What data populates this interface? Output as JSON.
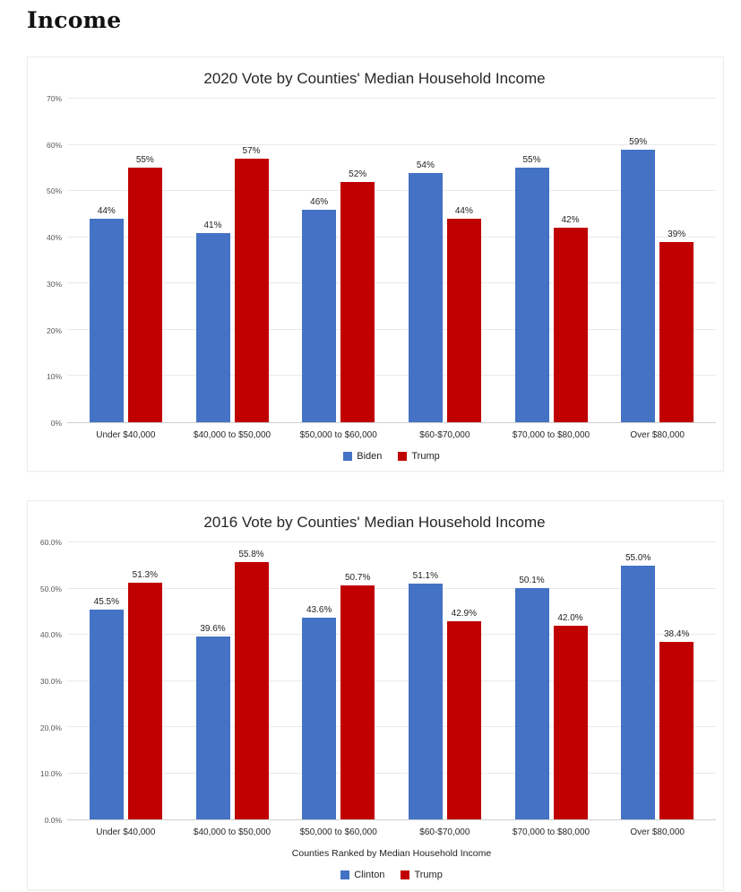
{
  "page": {
    "heading": "Income"
  },
  "colors": {
    "democrat_blue": "#4472C4",
    "republican_red": "#C00000"
  },
  "chart_data": [
    {
      "type": "bar",
      "title": "2020 Vote by Counties' Median Household Income",
      "categories": [
        "Under $40,000",
        "$40,000 to $50,000",
        "$50,000 to $60,000",
        "$60-$70,000",
        "$70,000 to $80,000",
        "Over $80,000"
      ],
      "series": [
        {
          "name": "Biden",
          "color": "#4472C4",
          "values": [
            44,
            41,
            46,
            54,
            55,
            59
          ],
          "labels": [
            "44%",
            "41%",
            "46%",
            "54%",
            "55%",
            "59%"
          ]
        },
        {
          "name": "Trump",
          "color": "#C00000",
          "values": [
            55,
            57,
            52,
            44,
            42,
            39
          ],
          "labels": [
            "55%",
            "57%",
            "52%",
            "44%",
            "42%",
            "39%"
          ]
        }
      ],
      "ylim": [
        0,
        70
      ],
      "yticks": [
        "0%",
        "10%",
        "20%",
        "30%",
        "40%",
        "50%",
        "60%",
        "70%"
      ],
      "xlabel": "",
      "legend": [
        "Biden",
        "Trump"
      ],
      "legend_position": "bottom",
      "grid": true
    },
    {
      "type": "bar",
      "title": "2016 Vote by Counties' Median Household Income",
      "categories": [
        "Under $40,000",
        "$40,000 to $50,000",
        "$50,000 to $60,000",
        "$60-$70,000",
        "$70,000 to $80,000",
        "Over $80,000"
      ],
      "series": [
        {
          "name": "Clinton",
          "color": "#4472C4",
          "values": [
            45.5,
            39.6,
            43.6,
            51.1,
            50.1,
            55.0
          ],
          "labels": [
            "45.5%",
            "39.6%",
            "43.6%",
            "51.1%",
            "50.1%",
            "55.0%"
          ]
        },
        {
          "name": "Trump",
          "color": "#C00000",
          "values": [
            51.3,
            55.8,
            50.7,
            42.9,
            42.0,
            38.4
          ],
          "labels": [
            "51.3%",
            "55.8%",
            "50.7%",
            "42.9%",
            "42.0%",
            "38.4%"
          ]
        }
      ],
      "ylim": [
        0,
        60
      ],
      "yticks": [
        "0.0%",
        "10.0%",
        "20.0%",
        "30.0%",
        "40.0%",
        "50.0%",
        "60.0%"
      ],
      "xlabel": "Counties Ranked by Median Household Income",
      "legend": [
        "Clinton",
        "Trump"
      ],
      "legend_position": "bottom",
      "grid": true
    }
  ]
}
